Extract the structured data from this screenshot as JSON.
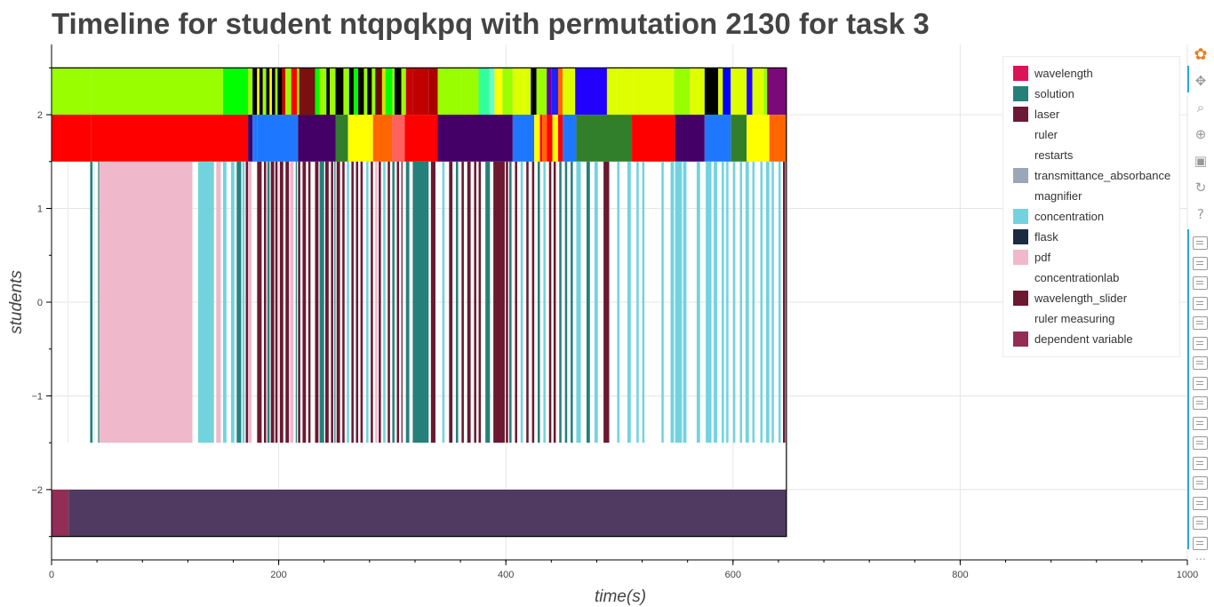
{
  "title": "Timeline for student ntqpqkpq with permutation 2130 for task 3",
  "chart_data": {
    "type": "timeline",
    "title": "Timeline for student ntqpqkpq with permutation 2130 for task 3",
    "xlabel": "time(s)",
    "ylabel": "students",
    "xlim": [
      0,
      1000
    ],
    "ylim": [
      -2.75,
      2.75
    ],
    "x_ticks": [
      0,
      200,
      400,
      600,
      800,
      1000
    ],
    "y_ticks": [
      -2,
      -1,
      0,
      1,
      2
    ],
    "x_tick_labels": [
      "0",
      "200",
      "400",
      "600",
      "800",
      "1000"
    ],
    "y_tick_labels": [
      "−2",
      "−1",
      "0",
      "1",
      "2"
    ],
    "grid": true,
    "legend_position": "top-right",
    "legend": [
      {
        "label": "wavelength",
        "color": "#dc1457"
      },
      {
        "label": "solution",
        "color": "#26807a"
      },
      {
        "label": "laser",
        "color": "#6b1a35"
      },
      {
        "label": "ruler",
        "color": "#ffffff"
      },
      {
        "label": "restarts",
        "color": "#ffffff"
      },
      {
        "label": "transmittance_absorbance",
        "color": "#9aa7b9"
      },
      {
        "label": "magnifier",
        "color": "#ffffff"
      },
      {
        "label": "concentration",
        "color": "#72d3df"
      },
      {
        "label": "flask",
        "color": "#1b2c42"
      },
      {
        "label": "pdf",
        "color": "#efb8cb"
      },
      {
        "label": "concentrationlab",
        "color": "#ffffff"
      },
      {
        "label": "wavelength_slider",
        "color": "#6a1931"
      },
      {
        "label": "ruler measuring",
        "color": "#ffffff"
      },
      {
        "label": "dependent variable",
        "color": "#922d56"
      }
    ],
    "rows": [
      {
        "name": "top",
        "y_range": [
          2,
          2.5
        ],
        "segments": [
          [
            0,
            35,
            "#99ff00"
          ],
          [
            35,
            151,
            "#99ff00"
          ],
          [
            151,
            173,
            "#00ff00"
          ],
          [
            173,
            177,
            "#99ff00"
          ],
          [
            177,
            181,
            "#000000"
          ],
          [
            181,
            183,
            "#ffff00"
          ],
          [
            183,
            186,
            "#000000"
          ],
          [
            186,
            189,
            "#99ff00"
          ],
          [
            189,
            192,
            "#000000"
          ],
          [
            192,
            194,
            "#ffff00"
          ],
          [
            194,
            197,
            "#000000"
          ],
          [
            197,
            199,
            "#99ff00"
          ],
          [
            199,
            203,
            "#000000"
          ],
          [
            203,
            206,
            "#c80000"
          ],
          [
            206,
            211,
            "#99ff00"
          ],
          [
            211,
            216,
            "#ff0000"
          ],
          [
            216,
            218,
            "#99ff00"
          ],
          [
            218,
            232,
            "#7a1010"
          ],
          [
            232,
            236,
            "#00ff00"
          ],
          [
            236,
            242,
            "#99ff00"
          ],
          [
            242,
            245,
            "#000000"
          ],
          [
            245,
            250,
            "#99ff00"
          ],
          [
            250,
            257,
            "#000000"
          ],
          [
            257,
            262,
            "#99ff00"
          ],
          [
            262,
            266,
            "#000000"
          ],
          [
            266,
            270,
            "#00ff00"
          ],
          [
            270,
            275,
            "#000000"
          ],
          [
            275,
            278,
            "#99ff00"
          ],
          [
            278,
            282,
            "#000000"
          ],
          [
            282,
            285,
            "#99ff00"
          ],
          [
            285,
            291,
            "#6c0a0a"
          ],
          [
            291,
            294,
            "#dddd00"
          ],
          [
            294,
            300,
            "#00ff00"
          ],
          [
            300,
            302,
            "#99ff00"
          ],
          [
            302,
            308,
            "#000000"
          ],
          [
            308,
            312,
            "#99ff00"
          ],
          [
            312,
            318,
            "#c80000"
          ],
          [
            318,
            332,
            "#c00000"
          ],
          [
            332,
            340,
            "#aa0000"
          ],
          [
            340,
            360,
            "#99ff00"
          ],
          [
            360,
            376,
            "#99ff00"
          ],
          [
            376,
            385,
            "#33ff99"
          ],
          [
            385,
            390,
            "#66ffcc"
          ],
          [
            390,
            397,
            "#ffff00"
          ],
          [
            397,
            406,
            "#99ff00"
          ],
          [
            406,
            416,
            "#ddff00"
          ],
          [
            416,
            422,
            "#ddff00"
          ],
          [
            422,
            427,
            "#000000"
          ],
          [
            427,
            436,
            "#99ff00"
          ],
          [
            436,
            440,
            "#6600aa"
          ],
          [
            440,
            446,
            "#2020ff"
          ],
          [
            446,
            450,
            "#ff6600"
          ],
          [
            450,
            461,
            "#ddff00"
          ],
          [
            461,
            489,
            "#2200ff"
          ],
          [
            489,
            497,
            "#ddff00"
          ],
          [
            497,
            512,
            "#ddff00"
          ],
          [
            512,
            548,
            "#ddff00"
          ],
          [
            548,
            562,
            "#99ff00"
          ],
          [
            562,
            575,
            "#ddff00"
          ],
          [
            575,
            587,
            "#000000"
          ],
          [
            587,
            591,
            "#ddff00"
          ],
          [
            591,
            598,
            "#0000ff"
          ],
          [
            598,
            612,
            "#ddff00"
          ],
          [
            612,
            617,
            "#2200ff"
          ],
          [
            617,
            627,
            "#ddff00"
          ],
          [
            627,
            630,
            "#99ff00"
          ],
          [
            630,
            647,
            "#7a0a7a"
          ]
        ]
      },
      {
        "name": "middle",
        "y_range": [
          1.5,
          2
        ],
        "segments": [
          [
            0,
            35,
            "#ff0000"
          ],
          [
            35,
            151,
            "#ff0000"
          ],
          [
            151,
            173,
            "#ff0000"
          ],
          [
            173,
            177,
            "#3a006a"
          ],
          [
            177,
            181,
            "#1e78ff"
          ],
          [
            181,
            217,
            "#1e78ff"
          ],
          [
            217,
            250,
            "#440066"
          ],
          [
            250,
            261,
            "#317f2b"
          ],
          [
            261,
            283,
            "#ffff00"
          ],
          [
            283,
            300,
            "#ff6600"
          ],
          [
            300,
            311,
            "#ff6060"
          ],
          [
            311,
            340,
            "#ff0000"
          ],
          [
            340,
            406,
            "#440066"
          ],
          [
            406,
            425,
            "#1e78ff"
          ],
          [
            425,
            430,
            "#ffff00"
          ],
          [
            430,
            432,
            "#ff0000"
          ],
          [
            432,
            436,
            "#ff6600"
          ],
          [
            436,
            441,
            "#ff0000"
          ],
          [
            441,
            446,
            "#ffff00"
          ],
          [
            446,
            450,
            "#ff0000"
          ],
          [
            450,
            462,
            "#1e78ff"
          ],
          [
            462,
            511,
            "#317f2b"
          ],
          [
            511,
            549,
            "#ff0000"
          ],
          [
            549,
            575,
            "#440066"
          ],
          [
            575,
            598,
            "#1e78ff"
          ],
          [
            598,
            612,
            "#317f2b"
          ],
          [
            612,
            632,
            "#ffff00"
          ],
          [
            632,
            647,
            "#ff6600"
          ]
        ]
      },
      {
        "name": "events",
        "y_range": [
          -1.5,
          1.5
        ],
        "segments": [
          [
            14,
            15,
            "#e9eef4"
          ],
          [
            34,
            36,
            "#26807a"
          ],
          [
            36,
            38,
            "#d8eef2"
          ],
          [
            41,
            42,
            "#26807a"
          ],
          [
            42,
            124,
            "#efb8cb"
          ],
          [
            129,
            143,
            "#72d3df"
          ],
          [
            145,
            149,
            "#efb8cb"
          ],
          [
            151,
            154,
            "#72d3df"
          ],
          [
            158,
            161,
            "#72d3df"
          ],
          [
            163,
            167,
            "#26807a"
          ],
          [
            168,
            170,
            "#72d3df"
          ],
          [
            171,
            173,
            "#6a1931"
          ],
          [
            173,
            176,
            "#efb8cb"
          ],
          [
            181,
            185,
            "#6a1931"
          ],
          [
            187,
            189,
            "#6a1931"
          ],
          [
            190,
            192,
            "#26807a"
          ],
          [
            193,
            196,
            "#6a1931"
          ],
          [
            197,
            199,
            "#6a1931"
          ],
          [
            201,
            204,
            "#6a1931"
          ],
          [
            206,
            209,
            "#6a1931"
          ],
          [
            210,
            213,
            "#efb8cb"
          ],
          [
            215,
            216,
            "#26807a"
          ],
          [
            217,
            219,
            "#6a1931"
          ],
          [
            221,
            224,
            "#6a1931"
          ],
          [
            226,
            228,
            "#6a1931"
          ],
          [
            232,
            235,
            "#6a1931"
          ],
          [
            236,
            240,
            "#26807a"
          ],
          [
            241,
            244,
            "#6a1931"
          ],
          [
            246,
            248,
            "#6a1931"
          ],
          [
            249,
            250,
            "#26807a"
          ],
          [
            251,
            254,
            "#6a1931"
          ],
          [
            256,
            258,
            "#6a1931"
          ],
          [
            260,
            262,
            "#72d3df"
          ],
          [
            264,
            266,
            "#6a1931"
          ],
          [
            268,
            270,
            "#6a1931"
          ],
          [
            272,
            274,
            "#6a1931"
          ],
          [
            277,
            279,
            "#72d3df"
          ],
          [
            281,
            283,
            "#6a1931"
          ],
          [
            285,
            287,
            "#efb8cb"
          ],
          [
            288,
            290,
            "#6a1931"
          ],
          [
            292,
            294,
            "#72d3df"
          ],
          [
            296,
            298,
            "#6a1931"
          ],
          [
            300,
            302,
            "#26807a"
          ],
          [
            304,
            306,
            "#6a1931"
          ],
          [
            308,
            309,
            "#6a1931"
          ],
          [
            312,
            315,
            "#26807a"
          ],
          [
            318,
            332,
            "#26807a"
          ],
          [
            334,
            338,
            "#6a1931"
          ],
          [
            344,
            346,
            "#72d3df"
          ],
          [
            350,
            353,
            "#6a1931"
          ],
          [
            356,
            358,
            "#26807a"
          ],
          [
            361,
            363,
            "#6a1931"
          ],
          [
            366,
            369,
            "#6a1931"
          ],
          [
            372,
            374,
            "#6a1931"
          ],
          [
            376,
            378,
            "#6a1931"
          ],
          [
            382,
            386,
            "#26807a"
          ],
          [
            389,
            399,
            "#6a1931"
          ],
          [
            400,
            402,
            "#6a1931"
          ],
          [
            403,
            405,
            "#26807a"
          ],
          [
            408,
            410,
            "#6a1931"
          ],
          [
            413,
            415,
            "#72d3df"
          ],
          [
            418,
            420,
            "#6a1931"
          ],
          [
            423,
            425,
            "#6a1931"
          ],
          [
            428,
            430,
            "#26807a"
          ],
          [
            433,
            435,
            "#72d3df"
          ],
          [
            438,
            440,
            "#6a1931"
          ],
          [
            442,
            444,
            "#6a1931"
          ],
          [
            447,
            449,
            "#26807a"
          ],
          [
            452,
            454,
            "#26807a"
          ],
          [
            457,
            459,
            "#26807a"
          ],
          [
            462,
            466,
            "#72d3df"
          ],
          [
            471,
            474,
            "#26807a"
          ],
          [
            478,
            481,
            "#72d3df"
          ],
          [
            486,
            491,
            "#6a1931"
          ],
          [
            498,
            500,
            "#72d3df"
          ],
          [
            507,
            510,
            "#72d3df"
          ],
          [
            515,
            517,
            "#72d3df"
          ],
          [
            520,
            522,
            "#72d3df"
          ],
          [
            537,
            539,
            "#72d3df"
          ],
          [
            545,
            548,
            "#72d3df"
          ],
          [
            549,
            555,
            "#72d3df"
          ],
          [
            556,
            559,
            "#72d3df"
          ],
          [
            568,
            571,
            "#72d3df"
          ],
          [
            576,
            581,
            "#72d3df"
          ],
          [
            583,
            586,
            "#72d3df"
          ],
          [
            590,
            592,
            "#72d3df"
          ],
          [
            594,
            596,
            "#72d3df"
          ],
          [
            600,
            602,
            "#72d3df"
          ],
          [
            606,
            608,
            "#72d3df"
          ],
          [
            611,
            614,
            "#72d3df"
          ],
          [
            617,
            619,
            "#72d3df"
          ],
          [
            624,
            626,
            "#72d3df"
          ],
          [
            629,
            632,
            "#72d3df"
          ],
          [
            634,
            636,
            "#72d3df"
          ],
          [
            640,
            642,
            "#72d3df"
          ],
          [
            644,
            646,
            "#6a1931"
          ]
        ]
      },
      {
        "name": "bottom",
        "y_range": [
          -2.5,
          -2
        ],
        "segments": [
          [
            0,
            15,
            "#922d56"
          ],
          [
            15,
            647,
            "#513a62"
          ]
        ]
      }
    ]
  },
  "toolbar": {
    "tools": [
      {
        "name": "bokeh-logo-icon",
        "glyph": "✿",
        "color": "#e67e22"
      },
      {
        "name": "pan-icon",
        "glyph": "✥",
        "color": "#999999"
      },
      {
        "name": "box-zoom-icon",
        "glyph": "⌕",
        "color": "#999999"
      },
      {
        "name": "wheel-zoom-icon",
        "glyph": "⊕",
        "color": "#999999"
      },
      {
        "name": "save-icon",
        "glyph": "▣",
        "color": "#999999"
      },
      {
        "name": "reset-icon",
        "glyph": "↻",
        "color": "#999999"
      },
      {
        "name": "help-icon",
        "glyph": "?",
        "color": "#999999"
      }
    ],
    "hover_tool_count": 16,
    "more_label": "⋯"
  }
}
